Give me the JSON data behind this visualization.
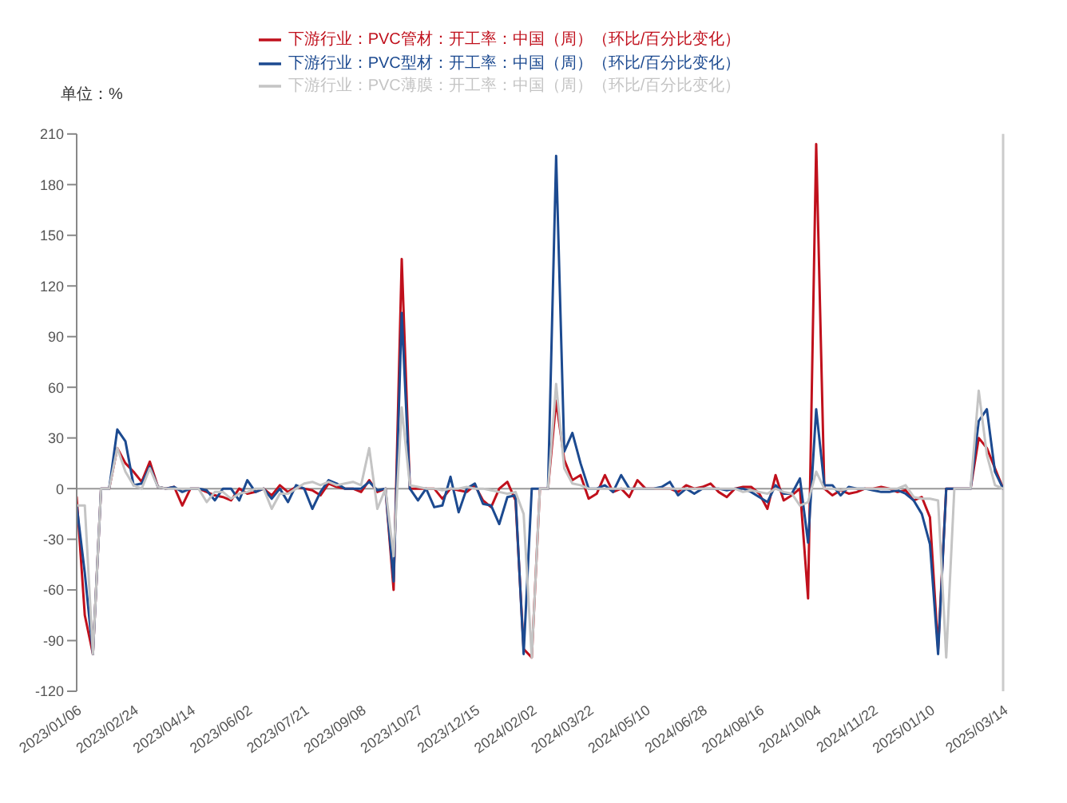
{
  "chart_data": {
    "type": "line",
    "ylabel": "单位：%",
    "categories": [
      "2023/01/06",
      null,
      null,
      null,
      null,
      null,
      null,
      "2023/02/24",
      null,
      null,
      null,
      null,
      null,
      null,
      "2023/04/14",
      null,
      null,
      null,
      null,
      null,
      null,
      "2023/06/02",
      null,
      null,
      null,
      null,
      null,
      null,
      "2023/07/21",
      null,
      null,
      null,
      null,
      null,
      null,
      "2023/09/08",
      null,
      null,
      null,
      null,
      null,
      null,
      "2023/10/27",
      null,
      null,
      null,
      null,
      null,
      null,
      "2023/12/15",
      null,
      null,
      null,
      null,
      null,
      null,
      "2024/02/02",
      null,
      null,
      null,
      null,
      null,
      null,
      "2024/03/22",
      null,
      null,
      null,
      null,
      null,
      null,
      "2024/05/10",
      null,
      null,
      null,
      null,
      null,
      null,
      "2024/06/28",
      null,
      null,
      null,
      null,
      null,
      null,
      "2024/08/16",
      null,
      null,
      null,
      null,
      null,
      null,
      "2024/10/04",
      null,
      null,
      null,
      null,
      null,
      null,
      "2024/11/22",
      null,
      null,
      null,
      null,
      null,
      null,
      "2025/01/10",
      null,
      null,
      null,
      null,
      null,
      null,
      null,
      null,
      "2025/03/14"
    ],
    "series": [
      {
        "name": "下游行业：PVC管材：开工率：中国（周）（环比/百分比变化）",
        "color": "#c0101c",
        "values": [
          -5,
          -75,
          -98,
          0,
          0,
          24,
          15,
          10,
          4,
          16,
          1,
          0,
          1,
          -10,
          0,
          0,
          -2,
          -4,
          -5,
          -7,
          0,
          -3,
          -2,
          0,
          -4,
          2,
          -2,
          1,
          0,
          -1,
          -4,
          3,
          1,
          0,
          0,
          -2,
          5,
          -2,
          0,
          -60,
          136,
          0,
          0,
          0,
          0,
          -6,
          0,
          -1,
          -2,
          2,
          -7,
          -11,
          0,
          4,
          -7,
          -95,
          -100,
          0,
          0,
          52,
          17,
          5,
          8,
          -6,
          -3,
          8,
          -2,
          0,
          -5,
          5,
          0,
          0,
          0,
          0,
          -2,
          2,
          0,
          1,
          3,
          -2,
          -5,
          0,
          1,
          1,
          -3,
          -12,
          8,
          -7,
          -4,
          0,
          -65,
          204,
          0,
          -4,
          -1,
          -3,
          -2,
          0,
          0,
          1,
          0,
          -2,
          -1,
          -7,
          -5,
          -17,
          -95,
          0,
          0,
          0,
          0,
          30,
          24,
          12,
          0
        ]
      },
      {
        "name": "下游行业：PVC型材：开工率：中国（周）（环比/百分比变化）",
        "color": "#1c4a90",
        "values": [
          -10,
          -50,
          -98,
          0,
          0,
          35,
          28,
          2,
          3,
          13,
          1,
          0,
          1,
          -2,
          0,
          0,
          -1,
          -7,
          0,
          0,
          -7,
          5,
          -2,
          0,
          -6,
          0,
          -8,
          2,
          0,
          -12,
          -2,
          5,
          3,
          0,
          0,
          0,
          4,
          -1,
          0,
          -55,
          104,
          0,
          -7,
          0,
          -11,
          -10,
          7,
          -14,
          0,
          3,
          -9,
          -10,
          -21,
          -5,
          -4,
          -98,
          0,
          0,
          0,
          197,
          22,
          33,
          15,
          0,
          0,
          2,
          -2,
          8,
          0,
          0,
          0,
          0,
          1,
          4,
          -4,
          0,
          -3,
          0,
          0,
          0,
          -1,
          0,
          0,
          -2,
          -5,
          -8,
          2,
          -3,
          -3,
          6,
          -32,
          47,
          2,
          2,
          -4,
          1,
          0,
          0,
          -1,
          -2,
          -2,
          -1,
          -3,
          -7,
          -15,
          -33,
          -98,
          0,
          0,
          0,
          0,
          40,
          47,
          10,
          0
        ]
      },
      {
        "name": "下游行业：PVC薄膜：开工率：中国（周）（环比/百分比变化）",
        "color": "#c4c4c4",
        "values": [
          -10,
          -10,
          -98,
          0,
          0,
          24,
          10,
          2,
          0,
          12,
          1,
          0,
          0,
          0,
          0,
          0,
          -8,
          -2,
          -2,
          -6,
          -3,
          -2,
          0,
          0,
          -12,
          -3,
          -3,
          0,
          3,
          4,
          2,
          4,
          2,
          3,
          4,
          2,
          24,
          -12,
          0,
          -40,
          48,
          2,
          1,
          0,
          0,
          -1,
          0,
          0,
          1,
          0,
          0,
          -1,
          -2,
          -3,
          -2,
          -15,
          -100,
          0,
          0,
          62,
          12,
          3,
          2,
          0,
          0,
          0,
          0,
          0,
          0,
          0,
          0,
          0,
          0,
          0,
          0,
          0,
          0,
          0,
          0,
          0,
          0,
          0,
          -2,
          -1,
          -2,
          -3,
          0,
          -2,
          -3,
          -10,
          -8,
          10,
          0,
          0,
          -1,
          0,
          0,
          0,
          0,
          0,
          0,
          0,
          2,
          -5,
          -6,
          -6,
          -7,
          -100,
          0,
          0,
          0,
          58,
          20,
          2,
          0
        ]
      }
    ],
    "ylim": [
      -120,
      210
    ],
    "yticks": [
      -120,
      -90,
      -60,
      -30,
      0,
      30,
      60,
      90,
      120,
      150,
      180,
      210
    ],
    "ref_lines": [
      {
        "axis": "y",
        "value": 0,
        "color": "#999999"
      },
      {
        "axis": "x",
        "value": "2025/03/14",
        "color": "#cccccc"
      }
    ],
    "grid": false,
    "legend": "top",
    "marker": "none",
    "line_style": "solid"
  }
}
